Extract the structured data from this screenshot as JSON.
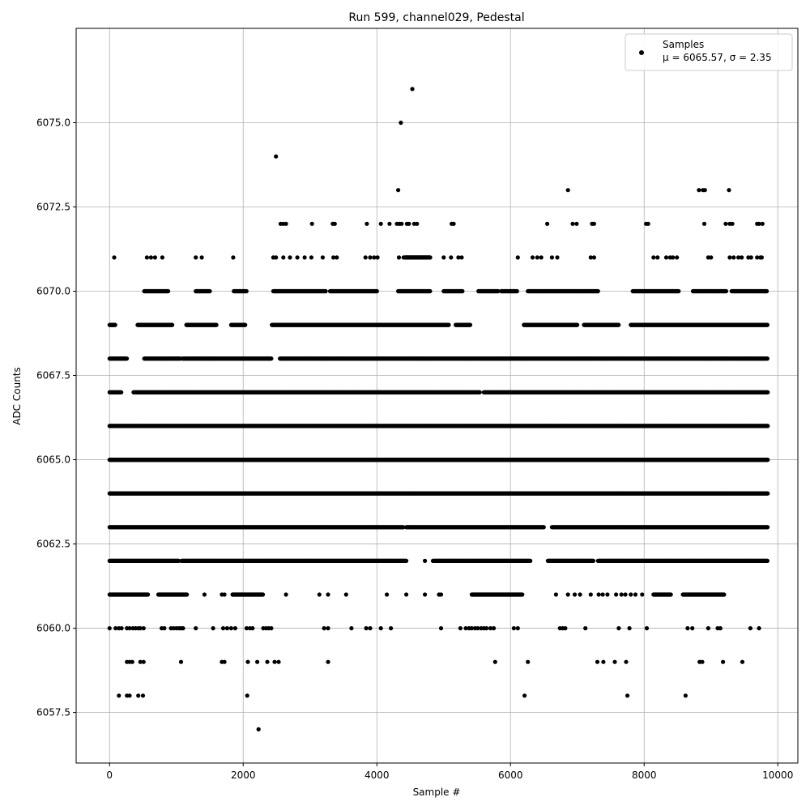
{
  "chart_data": {
    "type": "scatter",
    "title": "Run 599, channel029, Pedestal",
    "xlabel": "Sample #",
    "ylabel": "ADC Counts",
    "xlim": [
      -500,
      10300
    ],
    "ylim": [
      6056.0,
      6077.8
    ],
    "xticks": [
      0,
      2000,
      4000,
      6000,
      8000,
      10000
    ],
    "xtick_labels": [
      "0",
      "2000",
      "4000",
      "6000",
      "8000",
      "10000"
    ],
    "yticks": [
      6057.5,
      6060.0,
      6062.5,
      6065.0,
      6067.5,
      6070.0,
      6072.5,
      6075.0
    ],
    "ytick_labels": [
      "6057.5",
      "6060.0",
      "6062.5",
      "6065.0",
      "6067.5",
      "6070.0",
      "6072.5",
      "6075.0"
    ],
    "grid": true,
    "legend": {
      "placement": "top-right",
      "label_line1": "Samples",
      "label_line2": "μ = 6065.57, σ = 2.35"
    },
    "marker_color": "#000000",
    "series": [
      {
        "name": "Samples",
        "levels": [
          {
            "y": 6063,
            "x_ranges": [
              [
                0,
                4400
              ],
              [
                4440,
                6500
              ],
              [
                6620,
                9850
              ]
            ]
          },
          {
            "y": 6064,
            "x_ranges": [
              [
                0,
                9850
              ]
            ]
          },
          {
            "y": 6065,
            "x_ranges": [
              [
                0,
                9850
              ]
            ]
          },
          {
            "y": 6066,
            "x_ranges": [
              [
                0,
                9850
              ]
            ]
          },
          {
            "y": 6067,
            "x_ranges": [
              [
                0,
                180
              ],
              [
                360,
                5540
              ],
              [
                5600,
                9850
              ]
            ]
          },
          {
            "y": 6068,
            "x_ranges": [
              [
                0,
                260
              ],
              [
                520,
                1060
              ],
              [
                1090,
                2420
              ],
              [
                2550,
                9850
              ]
            ]
          },
          {
            "y": 6062,
            "x_ranges": [
              [
                0,
                1040
              ],
              [
                1080,
                4440
              ],
              [
                4840,
                6300
              ],
              [
                6560,
                7240
              ],
              [
                7310,
                9850
              ]
            ]
          },
          {
            "y": 6069,
            "x_ranges": [
              [
                0,
                90
              ],
              [
                420,
                940
              ],
              [
                1150,
                1600
              ],
              [
                1820,
                2030
              ],
              [
                2430,
                5080
              ],
              [
                5180,
                5400
              ],
              [
                6200,
                7000
              ],
              [
                7100,
                7620
              ],
              [
                7800,
                9850
              ]
            ]
          },
          {
            "y": 6070,
            "x_ranges": [
              [
                520,
                880
              ],
              [
                1290,
                1500
              ],
              [
                1860,
                2050
              ],
              [
                2450,
                3240
              ],
              [
                3300,
                4000
              ],
              [
                4320,
                4800
              ],
              [
                5000,
                5280
              ],
              [
                5520,
                5820
              ],
              [
                5860,
                6100
              ],
              [
                6260,
                7310
              ],
              [
                7830,
                8520
              ],
              [
                8730,
                9230
              ],
              [
                9310,
                9840
              ]
            ]
          },
          {
            "y": 6061,
            "x_ranges": [
              [
                0,
                580
              ],
              [
                730,
                1160
              ],
              [
                1840,
                2300
              ],
              [
                5420,
                6180
              ],
              [
                8140,
                8400
              ],
              [
                8580,
                9200
              ]
            ]
          },
          {
            "y": 6071,
            "x_ranges": [
              [
                4420,
                4800
              ]
            ]
          }
        ],
        "points": [
          [
            70,
            6071
          ],
          [
            560,
            6071
          ],
          [
            620,
            6071
          ],
          [
            680,
            6071
          ],
          [
            790,
            6071
          ],
          [
            1290,
            6071
          ],
          [
            1380,
            6071
          ],
          [
            1850,
            6071
          ],
          [
            2450,
            6071
          ],
          [
            2490,
            6071
          ],
          [
            2600,
            6071
          ],
          [
            2700,
            6071
          ],
          [
            2810,
            6071
          ],
          [
            2920,
            6071
          ],
          [
            3020,
            6071
          ],
          [
            3190,
            6071
          ],
          [
            3350,
            6071
          ],
          [
            3400,
            6071
          ],
          [
            3830,
            6071
          ],
          [
            3900,
            6071
          ],
          [
            3960,
            6071
          ],
          [
            4010,
            6071
          ],
          [
            4330,
            6071
          ],
          [
            4400,
            6071
          ],
          [
            5000,
            6071
          ],
          [
            5110,
            6071
          ],
          [
            5220,
            6071
          ],
          [
            5270,
            6071
          ],
          [
            6110,
            6071
          ],
          [
            6330,
            6071
          ],
          [
            6400,
            6071
          ],
          [
            6460,
            6071
          ],
          [
            6620,
            6071
          ],
          [
            6700,
            6071
          ],
          [
            7200,
            6071
          ],
          [
            7250,
            6071
          ],
          [
            8140,
            6071
          ],
          [
            8200,
            6071
          ],
          [
            8330,
            6071
          ],
          [
            8390,
            6071
          ],
          [
            8430,
            6071
          ],
          [
            8490,
            6071
          ],
          [
            8960,
            6071
          ],
          [
            9000,
            6071
          ],
          [
            9280,
            6071
          ],
          [
            9340,
            6071
          ],
          [
            9410,
            6071
          ],
          [
            9460,
            6071
          ],
          [
            9560,
            6071
          ],
          [
            9600,
            6071
          ],
          [
            9690,
            6071
          ],
          [
            9740,
            6071
          ],
          [
            9760,
            6071
          ],
          [
            2560,
            6072
          ],
          [
            2600,
            6072
          ],
          [
            2640,
            6072
          ],
          [
            3030,
            6072
          ],
          [
            3340,
            6072
          ],
          [
            3370,
            6072
          ],
          [
            3850,
            6072
          ],
          [
            4060,
            6072
          ],
          [
            4190,
            6072
          ],
          [
            4300,
            6072
          ],
          [
            4340,
            6072
          ],
          [
            4370,
            6072
          ],
          [
            4450,
            6072
          ],
          [
            4480,
            6072
          ],
          [
            4560,
            6072
          ],
          [
            4600,
            6072
          ],
          [
            5120,
            6072
          ],
          [
            5150,
            6072
          ],
          [
            6550,
            6072
          ],
          [
            6930,
            6072
          ],
          [
            6990,
            6072
          ],
          [
            7220,
            6072
          ],
          [
            7250,
            6072
          ],
          [
            8030,
            6072
          ],
          [
            8060,
            6072
          ],
          [
            8900,
            6072
          ],
          [
            9220,
            6072
          ],
          [
            9280,
            6072
          ],
          [
            9320,
            6072
          ],
          [
            9690,
            6072
          ],
          [
            9720,
            6072
          ],
          [
            9770,
            6072
          ],
          [
            4320,
            6073
          ],
          [
            6860,
            6073
          ],
          [
            8820,
            6073
          ],
          [
            8880,
            6073
          ],
          [
            8910,
            6073
          ],
          [
            9270,
            6073
          ],
          [
            2490,
            6074
          ],
          [
            4360,
            6075
          ],
          [
            4530,
            6076
          ],
          [
            0,
            6060
          ],
          [
            90,
            6060
          ],
          [
            140,
            6060
          ],
          [
            180,
            6060
          ],
          [
            260,
            6060
          ],
          [
            300,
            6060
          ],
          [
            350,
            6060
          ],
          [
            390,
            6060
          ],
          [
            430,
            6060
          ],
          [
            460,
            6060
          ],
          [
            510,
            6060
          ],
          [
            780,
            6060
          ],
          [
            820,
            6060
          ],
          [
            920,
            6060
          ],
          [
            960,
            6060
          ],
          [
            1000,
            6060
          ],
          [
            1040,
            6060
          ],
          [
            1070,
            6060
          ],
          [
            1100,
            6060
          ],
          [
            1290,
            6060
          ],
          [
            1550,
            6060
          ],
          [
            1700,
            6060
          ],
          [
            1760,
            6060
          ],
          [
            1820,
            6060
          ],
          [
            1880,
            6060
          ],
          [
            2050,
            6060
          ],
          [
            2100,
            6060
          ],
          [
            2140,
            6060
          ],
          [
            2300,
            6060
          ],
          [
            2340,
            6060
          ],
          [
            2380,
            6060
          ],
          [
            2420,
            6060
          ],
          [
            3210,
            6060
          ],
          [
            3270,
            6060
          ],
          [
            3620,
            6060
          ],
          [
            3840,
            6060
          ],
          [
            3900,
            6060
          ],
          [
            4060,
            6060
          ],
          [
            4210,
            6060
          ],
          [
            4960,
            6060
          ],
          [
            5250,
            6060
          ],
          [
            5330,
            6060
          ],
          [
            5380,
            6060
          ],
          [
            5420,
            6060
          ],
          [
            5470,
            6060
          ],
          [
            5510,
            6060
          ],
          [
            5560,
            6060
          ],
          [
            5600,
            6060
          ],
          [
            5640,
            6060
          ],
          [
            5700,
            6060
          ],
          [
            5750,
            6060
          ],
          [
            6050,
            6060
          ],
          [
            6110,
            6060
          ],
          [
            6740,
            6060
          ],
          [
            6780,
            6060
          ],
          [
            6820,
            6060
          ],
          [
            7120,
            6060
          ],
          [
            7620,
            6060
          ],
          [
            7780,
            6060
          ],
          [
            8040,
            6060
          ],
          [
            8650,
            6060
          ],
          [
            8720,
            6060
          ],
          [
            8960,
            6060
          ],
          [
            9100,
            6060
          ],
          [
            9140,
            6060
          ],
          [
            9590,
            6060
          ],
          [
            9720,
            6060
          ],
          [
            260,
            6059
          ],
          [
            300,
            6059
          ],
          [
            340,
            6059
          ],
          [
            460,
            6059
          ],
          [
            510,
            6059
          ],
          [
            1070,
            6059
          ],
          [
            1680,
            6059
          ],
          [
            1720,
            6059
          ],
          [
            2070,
            6059
          ],
          [
            2210,
            6059
          ],
          [
            2360,
            6059
          ],
          [
            2470,
            6059
          ],
          [
            2530,
            6059
          ],
          [
            3270,
            6059
          ],
          [
            5770,
            6059
          ],
          [
            6260,
            6059
          ],
          [
            7300,
            6059
          ],
          [
            7390,
            6059
          ],
          [
            7560,
            6059
          ],
          [
            7730,
            6059
          ],
          [
            8830,
            6059
          ],
          [
            8870,
            6059
          ],
          [
            9180,
            6059
          ],
          [
            9470,
            6059
          ],
          [
            140,
            6058
          ],
          [
            260,
            6058
          ],
          [
            300,
            6058
          ],
          [
            430,
            6058
          ],
          [
            500,
            6058
          ],
          [
            2060,
            6058
          ],
          [
            6210,
            6058
          ],
          [
            7750,
            6058
          ],
          [
            8620,
            6058
          ],
          [
            2230,
            6057
          ],
          [
            4720,
            6062
          ],
          [
            4150,
            6061
          ],
          [
            4440,
            6061
          ],
          [
            4720,
            6061
          ],
          [
            4930,
            6061
          ],
          [
            4960,
            6061
          ],
          [
            6680,
            6061
          ],
          [
            6860,
            6061
          ],
          [
            6960,
            6061
          ],
          [
            7040,
            6061
          ],
          [
            7200,
            6061
          ],
          [
            7320,
            6061
          ],
          [
            7380,
            6061
          ],
          [
            7450,
            6061
          ],
          [
            7580,
            6061
          ],
          [
            7660,
            6061
          ],
          [
            7720,
            6061
          ],
          [
            7800,
            6061
          ],
          [
            7870,
            6061
          ],
          [
            7970,
            6061
          ],
          [
            3140,
            6061
          ],
          [
            3270,
            6061
          ],
          [
            3540,
            6061
          ],
          [
            2640,
            6061
          ],
          [
            1420,
            6061
          ],
          [
            1680,
            6061
          ],
          [
            1720,
            6061
          ]
        ]
      }
    ]
  }
}
